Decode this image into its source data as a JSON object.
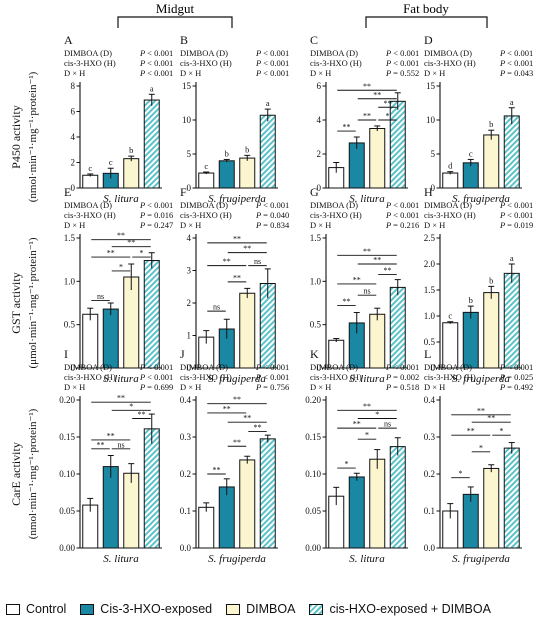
{
  "groups": {
    "left": "Midgut",
    "right": "Fat body"
  },
  "rows": [
    {
      "ylabel_main": "P450 activity",
      "ylabel_units": "(nmol·min⁻¹·mg⁻¹·protein⁻¹)"
    },
    {
      "ylabel_main": "GST activity",
      "ylabel_units": "(μmol·min⁻¹·mg⁻¹·protein⁻¹)"
    },
    {
      "ylabel_main": "CarE activity",
      "ylabel_units": "(nmol·min⁻¹·mg⁻¹·protein⁻¹)"
    }
  ],
  "legend": [
    {
      "label": "Control",
      "color": "#ffffff"
    },
    {
      "label": "Cis-3-HXO-exposed",
      "color": "#1a87a3"
    },
    {
      "label": "DIMBOA",
      "color": "#fbf6cf"
    },
    {
      "label": "cis-HXO-exposed + DIMBOA",
      "color": "#5cc2c9"
    }
  ],
  "colors": {
    "control": "#ffffff",
    "hxo": "#1a87a3",
    "dimboa": "#fbf6cf",
    "combo": "#5cc2c9",
    "axis": "#111111"
  },
  "chart_data": [
    {
      "type": "bar",
      "panel": "A",
      "xlabel": "S. litura",
      "ylim": [
        0,
        8
      ],
      "yticks": [
        0,
        2,
        4,
        6,
        8
      ],
      "categories": [
        "Control",
        "Cis-3-HXO-exposed",
        "DIMBOA",
        "cis-HXO-exposed + DIMBOA"
      ],
      "values": [
        1.0,
        1.15,
        2.3,
        6.9
      ],
      "errors": [
        0.1,
        0.4,
        0.2,
        0.45
      ],
      "letters": [
        "c",
        "c",
        "b",
        "a"
      ],
      "stats": [
        {
          "name": "DIMBOA (D)",
          "p": "< 0.001"
        },
        {
          "name": "cis-3-HXO (H)",
          "p": "< 0.001"
        },
        {
          "name": "D × H",
          "p": "< 0.001"
        }
      ],
      "brackets": []
    },
    {
      "type": "bar",
      "panel": "B",
      "xlabel": "S. frugiperda",
      "ylim": [
        0,
        15
      ],
      "yticks": [
        0,
        5,
        10,
        15
      ],
      "categories": [
        "Control",
        "Cis-3-HXO-exposed",
        "DIMBOA",
        "cis-HXO-exposed + DIMBOA"
      ],
      "values": [
        2.2,
        4.0,
        4.4,
        10.7
      ],
      "errors": [
        0.15,
        0.2,
        0.4,
        0.9
      ],
      "letters": [
        "c",
        "b",
        "b",
        "a"
      ],
      "stats": [
        {
          "name": "DIMBOA (D)",
          "p": "< 0.001"
        },
        {
          "name": "cis-3-HXO (H)",
          "p": "< 0.001"
        },
        {
          "name": "D × H",
          "p": "< 0.001"
        }
      ],
      "brackets": []
    },
    {
      "type": "bar",
      "panel": "C",
      "xlabel": "S. litura",
      "ylim": [
        0,
        6
      ],
      "yticks": [
        0,
        2,
        4,
        6
      ],
      "categories": [
        "Control",
        "Cis-3-HXO-exposed",
        "DIMBOA",
        "cis-HXO-exposed + DIMBOA"
      ],
      "values": [
        1.2,
        2.65,
        3.5,
        5.1
      ],
      "errors": [
        0.3,
        0.35,
        0.15,
        0.5
      ],
      "letters": [],
      "stats": [
        {
          "name": "DIMBOA (D)",
          "p": "< 0.001"
        },
        {
          "name": "cis-3-HXO (H)",
          "p": "< 0.001"
        },
        {
          "name": "D × H",
          "p": "= 0.552"
        }
      ],
      "brackets": [
        {
          "i": 0,
          "j": 3,
          "y": 5.75,
          "label": "**"
        },
        {
          "i": 1,
          "j": 3,
          "y": 5.25,
          "label": "**"
        },
        {
          "i": 2,
          "j": 3,
          "y": 4.75,
          "label": "**"
        },
        {
          "i": 1,
          "j": 2,
          "y": 4.0,
          "label": "**"
        },
        {
          "i": 2,
          "j": 3,
          "y": 4.0,
          "label": "*"
        },
        {
          "i": 0,
          "j": 1,
          "y": 3.35,
          "label": "**"
        }
      ]
    },
    {
      "type": "bar",
      "panel": "D",
      "xlabel": "S. frugiperda",
      "ylim": [
        0,
        15
      ],
      "yticks": [
        0,
        5,
        10,
        15
      ],
      "categories": [
        "Control",
        "Cis-3-HXO-exposed",
        "DIMBOA",
        "cis-HXO-exposed + DIMBOA"
      ],
      "values": [
        2.2,
        3.7,
        7.8,
        10.6
      ],
      "errors": [
        0.2,
        0.5,
        0.7,
        1.2
      ],
      "letters": [
        "d",
        "c",
        "b",
        "a"
      ],
      "stats": [
        {
          "name": "DIMBOA (D)",
          "p": "< 0.001"
        },
        {
          "name": "cis-3-HXO (H)",
          "p": "< 0.001"
        },
        {
          "name": "D × H",
          "p": "= 0.043"
        }
      ],
      "brackets": []
    },
    {
      "type": "bar",
      "panel": "E",
      "xlabel": "S. litura",
      "ylim": [
        0,
        1.5
      ],
      "yticks": [
        0,
        0.5,
        1.0,
        1.5
      ],
      "categories": [
        "Control",
        "Cis-3-HXO-exposed",
        "DIMBOA",
        "cis-HXO-exposed + DIMBOA"
      ],
      "values": [
        0.62,
        0.68,
        1.05,
        1.24
      ],
      "errors": [
        0.07,
        0.07,
        0.15,
        0.09
      ],
      "letters": [],
      "stats": [
        {
          "name": "DIMBOA (D)",
          "p": "< 0.001"
        },
        {
          "name": "cis-3-HXO (H)",
          "p": "= 0.016"
        },
        {
          "name": "D × H",
          "p": "= 0.247"
        }
      ],
      "brackets": [
        {
          "i": 0,
          "j": 3,
          "y": 1.48,
          "label": "**"
        },
        {
          "i": 1,
          "j": 3,
          "y": 1.4,
          "label": "**"
        },
        {
          "i": 0,
          "j": 2,
          "y": 1.28,
          "label": "**"
        },
        {
          "i": 2,
          "j": 3,
          "y": 1.28,
          "label": "*"
        },
        {
          "i": 1,
          "j": 2,
          "y": 1.12,
          "label": "*"
        },
        {
          "i": 0,
          "j": 1,
          "y": 0.78,
          "label": "ns"
        }
      ]
    },
    {
      "type": "bar",
      "panel": "F",
      "xlabel": "S. frugiperda",
      "ylim": [
        0,
        4
      ],
      "yticks": [
        0,
        1,
        2,
        3,
        4
      ],
      "categories": [
        "Control",
        "Cis-3-HXO-exposed",
        "DIMBOA",
        "cis-HXO-exposed + DIMBOA"
      ],
      "values": [
        0.95,
        1.2,
        2.3,
        2.6
      ],
      "errors": [
        0.2,
        0.3,
        0.15,
        0.45
      ],
      "letters": [],
      "stats": [
        {
          "name": "DIMBOA (D)",
          "p": "< 0.001"
        },
        {
          "name": "cis-3-HXO (H)",
          "p": "= 0.040"
        },
        {
          "name": "D × H",
          "p": "= 0.834"
        }
      ],
      "brackets": [
        {
          "i": 0,
          "j": 3,
          "y": 3.85,
          "label": "**"
        },
        {
          "i": 1,
          "j": 3,
          "y": 3.55,
          "label": "**"
        },
        {
          "i": 0,
          "j": 2,
          "y": 3.15,
          "label": "**"
        },
        {
          "i": 2,
          "j": 3,
          "y": 3.15,
          "label": "ns"
        },
        {
          "i": 1,
          "j": 2,
          "y": 2.65,
          "label": "**"
        },
        {
          "i": 0,
          "j": 1,
          "y": 1.75,
          "label": "ns"
        }
      ]
    },
    {
      "type": "bar",
      "panel": "G",
      "xlabel": "S. litura",
      "ylim": [
        0,
        1.5
      ],
      "yticks": [
        0,
        0.5,
        1.0,
        1.5
      ],
      "categories": [
        "Control",
        "Cis-3-HXO-exposed",
        "DIMBOA",
        "cis-HXO-exposed + DIMBOA"
      ],
      "values": [
        0.32,
        0.52,
        0.62,
        0.93
      ],
      "errors": [
        0.02,
        0.12,
        0.07,
        0.09
      ],
      "letters": [],
      "stats": [
        {
          "name": "DIMBOA (D)",
          "p": "< 0.001"
        },
        {
          "name": "cis-3-HXO (H)",
          "p": "< 0.001"
        },
        {
          "name": "D × H",
          "p": "= 0.216"
        }
      ],
      "brackets": [
        {
          "i": 0,
          "j": 3,
          "y": 1.3,
          "label": "**"
        },
        {
          "i": 1,
          "j": 3,
          "y": 1.2,
          "label": "**"
        },
        {
          "i": 2,
          "j": 3,
          "y": 1.08,
          "label": "**"
        },
        {
          "i": 0,
          "j": 2,
          "y": 0.97,
          "label": "**"
        },
        {
          "i": 1,
          "j": 2,
          "y": 0.84,
          "label": "ns"
        },
        {
          "i": 0,
          "j": 1,
          "y": 0.72,
          "label": "**"
        }
      ]
    },
    {
      "type": "bar",
      "panel": "H",
      "xlabel": "S. frugiperda",
      "ylim": [
        0,
        2.5
      ],
      "yticks": [
        0,
        0.5,
        1.0,
        1.5,
        2.0,
        2.5
      ],
      "categories": [
        "Control",
        "Cis-3-HXO-exposed",
        "DIMBOA",
        "cis-HXO-exposed + DIMBOA"
      ],
      "values": [
        0.87,
        1.07,
        1.45,
        1.82
      ],
      "errors": [
        0.02,
        0.12,
        0.12,
        0.18
      ],
      "letters": [
        "c",
        "b",
        "b",
        "a"
      ],
      "stats": [
        {
          "name": "DIMBOA (D)",
          "p": "< 0.001"
        },
        {
          "name": "cis-3-HXO (H)",
          "p": "< 0.001"
        },
        {
          "name": "D × H",
          "p": "= 0.019"
        }
      ],
      "brackets": []
    },
    {
      "type": "bar",
      "panel": "I",
      "xlabel": "S. litura",
      "ylim": [
        0,
        0.2
      ],
      "yticks": [
        0,
        0.05,
        0.1,
        0.15,
        0.2
      ],
      "categories": [
        "Control",
        "Cis-3-HXO-exposed",
        "DIMBOA",
        "cis-HXO-exposed + DIMBOA"
      ],
      "values": [
        0.058,
        0.11,
        0.101,
        0.161
      ],
      "errors": [
        0.009,
        0.015,
        0.013,
        0.02
      ],
      "letters": [],
      "stats": [
        {
          "name": "DIMBOA (D)",
          "p": "< 0.001"
        },
        {
          "name": "cis-3-HXO (H)",
          "p": "< 0.001"
        },
        {
          "name": "D × H",
          "p": "= 0.699"
        }
      ],
      "brackets": [
        {
          "i": 0,
          "j": 3,
          "y": 0.197,
          "label": "**"
        },
        {
          "i": 1,
          "j": 3,
          "y": 0.186,
          "label": "*"
        },
        {
          "i": 2,
          "j": 3,
          "y": 0.175,
          "label": "**"
        },
        {
          "i": 0,
          "j": 2,
          "y": 0.146,
          "label": "**"
        },
        {
          "i": 0,
          "j": 1,
          "y": 0.134,
          "label": "**"
        },
        {
          "i": 1,
          "j": 2,
          "y": 0.134,
          "label": "ns"
        }
      ]
    },
    {
      "type": "bar",
      "panel": "J",
      "xlabel": "S. frugiperda",
      "ylim": [
        0,
        0.4
      ],
      "yticks": [
        0,
        0.1,
        0.2,
        0.3,
        0.4
      ],
      "categories": [
        "Control",
        "Cis-3-HXO-exposed",
        "DIMBOA",
        "cis-HXO-exposed + DIMBOA"
      ],
      "values": [
        0.11,
        0.165,
        0.238,
        0.295
      ],
      "errors": [
        0.012,
        0.022,
        0.01,
        0.01
      ],
      "letters": [],
      "stats": [
        {
          "name": "DIMBOA (D)",
          "p": "< 0.001"
        },
        {
          "name": "cis-3-HXO (H)",
          "p": "< 0.001"
        },
        {
          "name": "D × H",
          "p": "= 0.756"
        }
      ],
      "brackets": [
        {
          "i": 0,
          "j": 3,
          "y": 0.39,
          "label": "**"
        },
        {
          "i": 0,
          "j": 2,
          "y": 0.365,
          "label": "**"
        },
        {
          "i": 1,
          "j": 3,
          "y": 0.34,
          "label": "**"
        },
        {
          "i": 2,
          "j": 3,
          "y": 0.315,
          "label": "**"
        },
        {
          "i": 1,
          "j": 2,
          "y": 0.275,
          "label": "**"
        },
        {
          "i": 0,
          "j": 1,
          "y": 0.2,
          "label": "**"
        }
      ]
    },
    {
      "type": "bar",
      "panel": "K",
      "xlabel": "S. litura",
      "ylim": [
        0,
        0.2
      ],
      "yticks": [
        0,
        0.05,
        0.1,
        0.15,
        0.2
      ],
      "categories": [
        "Control",
        "Cis-3-HXO-exposed",
        "DIMBOA",
        "cis-HXO-exposed + DIMBOA"
      ],
      "values": [
        0.07,
        0.096,
        0.12,
        0.137
      ],
      "errors": [
        0.012,
        0.005,
        0.013,
        0.012
      ],
      "letters": [],
      "stats": [
        {
          "name": "DIMBOA (D)",
          "p": "< 0.001"
        },
        {
          "name": "cis-3-HXO (H)",
          "p": "= 0.002"
        },
        {
          "name": "D × H",
          "p": "= 0.518"
        }
      ],
      "brackets": [
        {
          "i": 0,
          "j": 3,
          "y": 0.186,
          "label": "**"
        },
        {
          "i": 1,
          "j": 3,
          "y": 0.175,
          "label": "*"
        },
        {
          "i": 0,
          "j": 2,
          "y": 0.162,
          "label": "**"
        },
        {
          "i": 2,
          "j": 3,
          "y": 0.162,
          "label": "ns"
        },
        {
          "i": 1,
          "j": 2,
          "y": 0.147,
          "label": "*"
        },
        {
          "i": 0,
          "j": 1,
          "y": 0.108,
          "label": "*"
        }
      ]
    },
    {
      "type": "bar",
      "panel": "L",
      "xlabel": "S. frugiperda",
      "ylim": [
        0,
        0.4
      ],
      "yticks": [
        0,
        0.1,
        0.2,
        0.3,
        0.4
      ],
      "categories": [
        "Control",
        "Cis-3-HXO-exposed",
        "DIMBOA",
        "cis-HXO-exposed + DIMBOA"
      ],
      "values": [
        0.1,
        0.145,
        0.215,
        0.27
      ],
      "errors": [
        0.02,
        0.02,
        0.01,
        0.015
      ],
      "letters": [],
      "stats": [
        {
          "name": "DIMBOA (D)",
          "p": "< 0.001"
        },
        {
          "name": "cis-3-HXO (H)",
          "p": "= 0.025"
        },
        {
          "name": "D × H",
          "p": "= 0.492"
        }
      ],
      "brackets": [
        {
          "i": 0,
          "j": 3,
          "y": 0.36,
          "label": "**"
        },
        {
          "i": 1,
          "j": 3,
          "y": 0.34,
          "label": "**"
        },
        {
          "i": 0,
          "j": 2,
          "y": 0.305,
          "label": "**"
        },
        {
          "i": 2,
          "j": 3,
          "y": 0.305,
          "label": "*"
        },
        {
          "i": 1,
          "j": 2,
          "y": 0.26,
          "label": "*"
        },
        {
          "i": 0,
          "j": 1,
          "y": 0.19,
          "label": "*"
        }
      ]
    }
  ]
}
